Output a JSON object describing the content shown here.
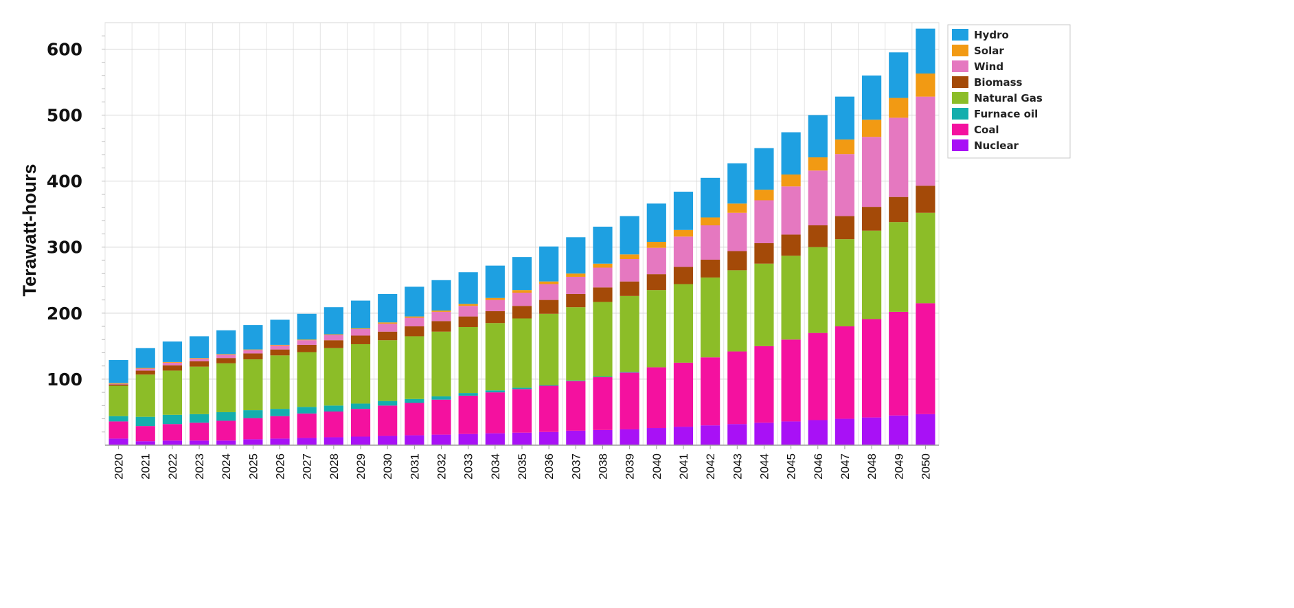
{
  "chart_data": {
    "type": "bar",
    "stacked": true,
    "title": "",
    "xlabel": "",
    "ylabel": "Terawatt-hours",
    "ylim": [
      0,
      640
    ],
    "yticks": [
      100,
      200,
      300,
      400,
      500,
      600
    ],
    "grid": true,
    "legend_position": "top-right",
    "categories": [
      "2020",
      "2021",
      "2022",
      "2023",
      "2024",
      "2025",
      "2026",
      "2027",
      "2028",
      "2029",
      "2030",
      "2031",
      "2032",
      "2033",
      "2034",
      "2035",
      "2036",
      "2037",
      "2038",
      "2039",
      "2040",
      "2041",
      "2042",
      "2043",
      "2044",
      "2045",
      "2046",
      "2047",
      "2048",
      "2049",
      "2050"
    ],
    "series": [
      {
        "name": "Nuclear",
        "color": "#a811f6",
        "values": [
          10,
          6,
          7,
          7,
          7,
          9,
          10,
          11,
          12,
          13,
          14,
          15,
          16,
          17,
          18,
          19,
          20,
          22,
          23,
          24,
          26,
          28,
          30,
          32,
          34,
          36,
          38,
          40,
          42,
          45,
          47
        ]
      },
      {
        "name": "Coal",
        "color": "#f4119f",
        "values": [
          26,
          23,
          25,
          27,
          30,
          32,
          34,
          37,
          39,
          42,
          46,
          49,
          53,
          58,
          62,
          66,
          70,
          75,
          80,
          86,
          92,
          97,
          103,
          110,
          116,
          124,
          132,
          140,
          149,
          157,
          168
        ]
      },
      {
        "name": "Furnace oil",
        "color": "#14aead",
        "values": [
          8,
          14,
          14,
          13,
          13,
          12,
          11,
          10,
          9,
          8,
          7,
          6,
          5,
          4,
          3,
          2,
          1,
          1,
          1,
          1,
          0,
          0,
          0,
          0,
          0,
          0,
          0,
          0,
          0,
          0,
          0
        ]
      },
      {
        "name": "Natural Gas",
        "color": "#8cbd28",
        "values": [
          46,
          64,
          67,
          72,
          74,
          77,
          81,
          83,
          87,
          90,
          92,
          95,
          98,
          100,
          102,
          105,
          108,
          111,
          113,
          115,
          117,
          119,
          121,
          123,
          125,
          127,
          130,
          132,
          134,
          136,
          137
        ]
      },
      {
        "name": "Biomass",
        "color": "#a44a08",
        "values": [
          2,
          6,
          8,
          8,
          8,
          9,
          9,
          11,
          12,
          13,
          13,
          15,
          16,
          16,
          18,
          19,
          21,
          20,
          22,
          22,
          24,
          26,
          27,
          29,
          31,
          32,
          33,
          35,
          36,
          38,
          41
        ]
      },
      {
        "name": "Wind",
        "color": "#e578c0",
        "values": [
          1,
          3,
          4,
          4,
          5,
          5,
          6,
          7,
          8,
          10,
          12,
          13,
          14,
          16,
          17,
          20,
          24,
          26,
          30,
          34,
          40,
          46,
          52,
          58,
          65,
          73,
          83,
          94,
          106,
          120,
          135
        ]
      },
      {
        "name": "Solar",
        "color": "#f29a13",
        "values": [
          1,
          1,
          1,
          1,
          1,
          1,
          1,
          1,
          1,
          1,
          2,
          2,
          2,
          3,
          3,
          4,
          4,
          5,
          6,
          7,
          9,
          10,
          12,
          14,
          16,
          18,
          20,
          22,
          26,
          30,
          35
        ]
      },
      {
        "name": "Hydro",
        "color": "#1ea0e1",
        "values": [
          35,
          30,
          31,
          33,
          36,
          37,
          38,
          39,
          41,
          42,
          43,
          45,
          46,
          48,
          49,
          50,
          53,
          55,
          56,
          58,
          58,
          58,
          60,
          61,
          63,
          64,
          64,
          65,
          67,
          69,
          68
        ]
      }
    ]
  }
}
